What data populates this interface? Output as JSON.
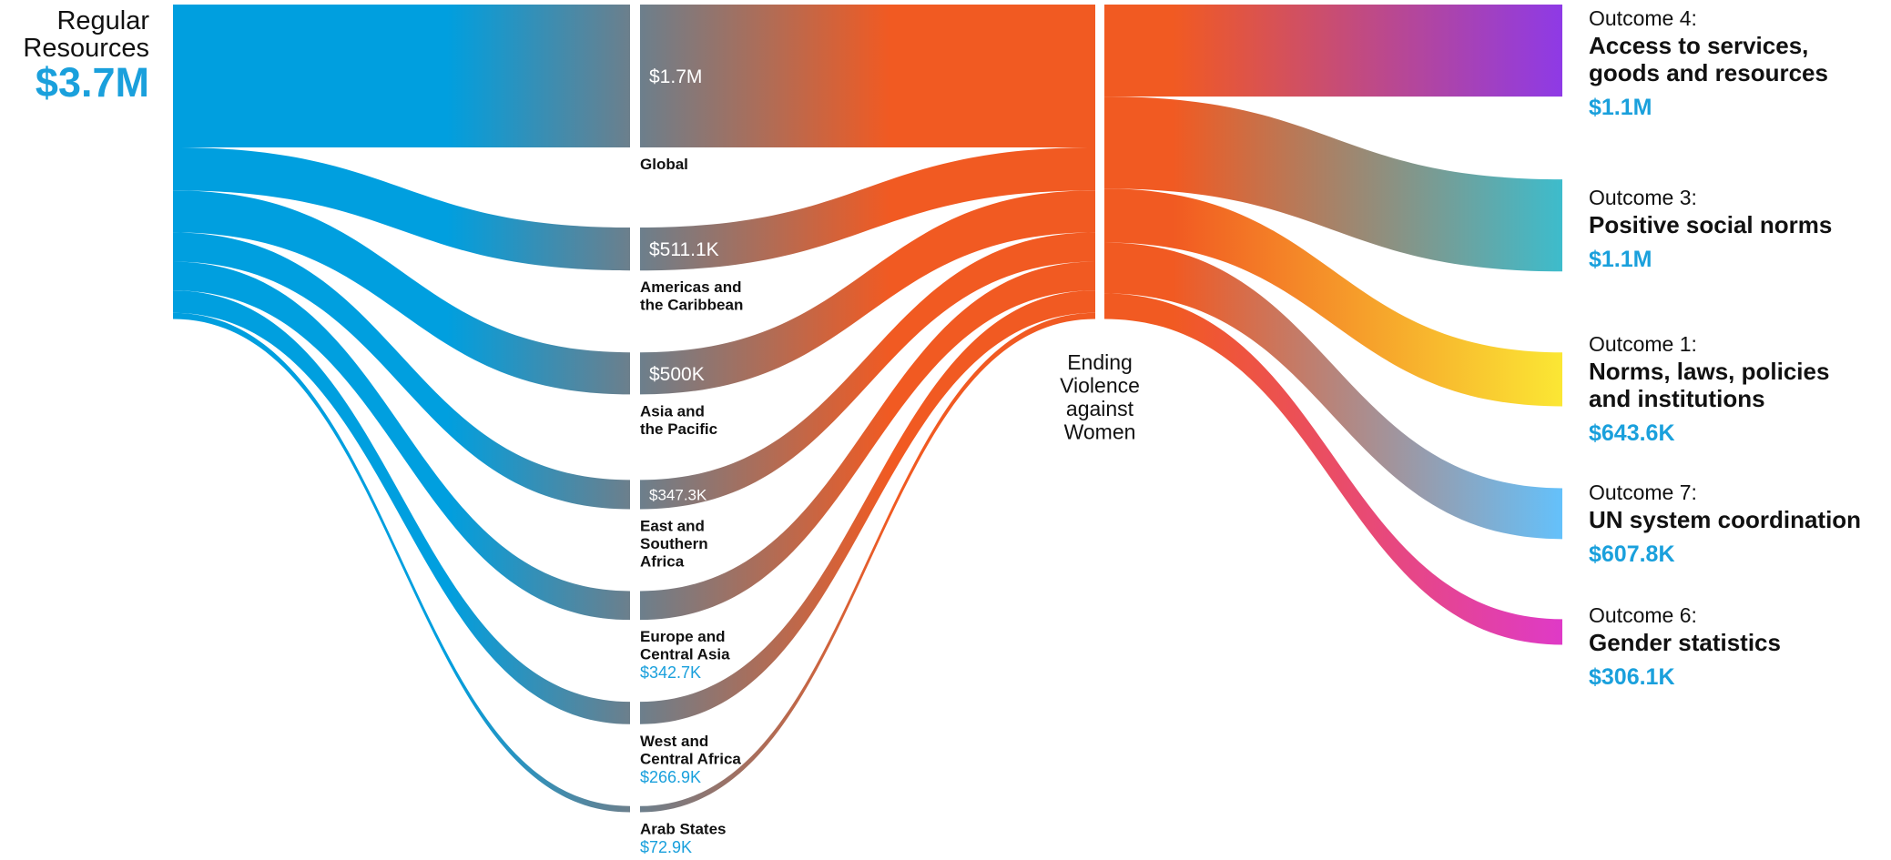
{
  "source": {
    "title_lines": [
      "Regular",
      "Resources"
    ],
    "total": "$3.7M",
    "color": "#009fdf"
  },
  "hub": {
    "label_lines": [
      "Ending",
      "Violence",
      "against",
      "Women"
    ],
    "color": "#f15a22"
  },
  "regions": [
    {
      "name_lines": [
        "Global"
      ],
      "amount": "$1.7M",
      "value": 1.7,
      "amount_inside": true
    },
    {
      "name_lines": [
        "Americas and",
        "the Caribbean"
      ],
      "amount": "$511.1K",
      "value": 0.5111,
      "amount_inside": true
    },
    {
      "name_lines": [
        "Asia and",
        "the Pacific"
      ],
      "amount": "$500K",
      "value": 0.5,
      "amount_inside": true
    },
    {
      "name_lines": [
        "East and",
        "Southern",
        "Africa"
      ],
      "amount": "$347.3K",
      "value": 0.3473,
      "amount_inside": true
    },
    {
      "name_lines": [
        "Europe and",
        "Central Asia"
      ],
      "amount": "$342.7K",
      "value": 0.3427,
      "amount_inside": false
    },
    {
      "name_lines": [
        "West and",
        "Central Africa"
      ],
      "amount": "$266.9K",
      "value": 0.2669,
      "amount_inside": false
    },
    {
      "name_lines": [
        "Arab States"
      ],
      "amount": "$72.9K",
      "value": 0.0729,
      "amount_inside": false
    }
  ],
  "outcomes": [
    {
      "prefix": "Outcome 4:",
      "name_lines": [
        "Access to services,",
        "goods and resources"
      ],
      "amount": "$1.1M",
      "value": 1.1,
      "color": "#8e3ae6"
    },
    {
      "prefix": "Outcome 3:",
      "name_lines": [
        "Positive social norms"
      ],
      "amount": "$1.1M",
      "value": 1.1,
      "color": "#3dbccc"
    },
    {
      "prefix": "Outcome 1:",
      "name_lines": [
        "Norms, laws, policies",
        "and institutions"
      ],
      "amount": "$643.6K",
      "value": 0.6436,
      "color": "#fbe734"
    },
    {
      "prefix": "Outcome 7:",
      "name_lines": [
        "UN system coordination"
      ],
      "amount": "$607.8K",
      "value": 0.6078,
      "color": "#64c1fb"
    },
    {
      "prefix": "Outcome 6:",
      "name_lines": [
        "Gender statistics"
      ],
      "amount": "$306.1K",
      "value": 0.3061,
      "color": "#df3ac7"
    }
  ]
}
